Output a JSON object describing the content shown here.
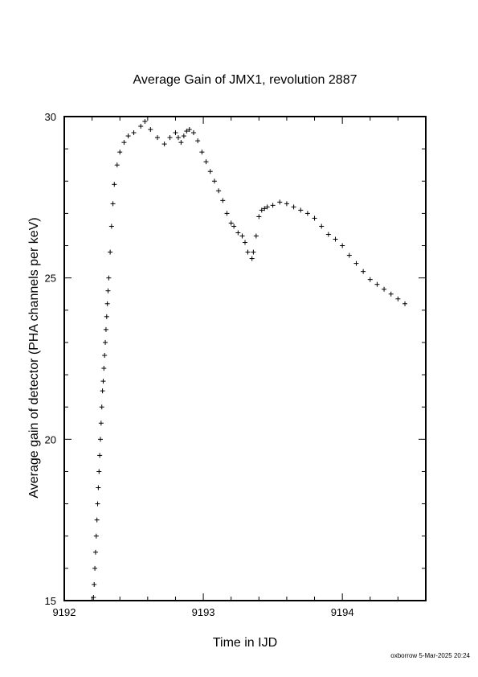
{
  "chart_data": {
    "type": "scatter",
    "title": "Average Gain of JMX1, revolution 2887",
    "xlabel": "Time in IJD",
    "ylabel": "Average gain of detector (PHA channels per keV)",
    "xlim": [
      9192,
      9194.6
    ],
    "ylim": [
      15,
      30
    ],
    "x_ticks": [
      9192,
      9193,
      9194
    ],
    "x_tick_labels": [
      "9192",
      "9193",
      "9194"
    ],
    "y_ticks": [
      15,
      20,
      25,
      30
    ],
    "y_tick_labels": [
      "15",
      "20",
      "25",
      "30"
    ],
    "x_minor_step": 0.2,
    "y_minor_step": 1,
    "marker": "+",
    "grid": false,
    "legend": "none",
    "series": [
      {
        "x": [
          9192.21,
          9192.215,
          9192.22,
          9192.225,
          9192.23,
          9192.235,
          9192.24,
          9192.245,
          9192.25,
          9192.255,
          9192.26,
          9192.265,
          9192.27,
          9192.275,
          9192.28,
          9192.285,
          9192.29,
          9192.295,
          9192.3,
          9192.305,
          9192.31,
          9192.315,
          9192.32,
          9192.33,
          9192.34,
          9192.35,
          9192.36,
          9192.38,
          9192.4,
          9192.43,
          9192.46,
          9192.5,
          9192.55,
          9192.58,
          9192.62,
          9192.67,
          9192.72,
          9192.76,
          9192.8,
          9192.82,
          9192.84,
          9192.86,
          9192.88,
          9192.9,
          9192.93,
          9192.96,
          9192.99,
          9193.02,
          9193.05,
          9193.08,
          9193.11,
          9193.14,
          9193.17,
          9193.2,
          9193.22,
          9193.25,
          9193.28,
          9193.3,
          9193.32,
          9193.35,
          9193.36,
          9193.38,
          9193.4,
          9193.42,
          9193.44,
          9193.46,
          9193.5,
          9193.55,
          9193.6,
          9193.65,
          9193.7,
          9193.75,
          9193.8,
          9193.85,
          9193.9,
          9193.95,
          9194.0,
          9194.05,
          9194.1,
          9194.15,
          9194.2,
          9194.25,
          9194.3,
          9194.35,
          9194.4,
          9194.45
        ],
        "y": [
          15.1,
          15.5,
          16.0,
          16.5,
          17.0,
          17.5,
          18.0,
          18.5,
          19.0,
          19.5,
          20.0,
          20.5,
          21.0,
          21.5,
          21.8,
          22.2,
          22.6,
          23.0,
          23.4,
          23.8,
          24.2,
          24.6,
          25.0,
          25.8,
          26.6,
          27.3,
          27.9,
          28.5,
          28.9,
          29.2,
          29.4,
          29.5,
          29.7,
          29.85,
          29.6,
          29.35,
          29.15,
          29.35,
          29.5,
          29.35,
          29.2,
          29.4,
          29.55,
          29.6,
          29.5,
          29.25,
          28.9,
          28.6,
          28.3,
          28.0,
          27.7,
          27.4,
          27.0,
          26.7,
          26.6,
          26.4,
          26.3,
          26.1,
          25.8,
          25.6,
          25.8,
          26.3,
          26.9,
          27.1,
          27.15,
          27.2,
          27.25,
          27.35,
          27.3,
          27.2,
          27.1,
          27.0,
          26.85,
          26.6,
          26.35,
          26.2,
          26.0,
          25.7,
          25.45,
          25.2,
          24.95,
          24.8,
          24.65,
          24.5,
          24.35,
          24.2
        ]
      }
    ]
  },
  "footer": {
    "stamp": "oxborrow  5-Mar-2025 20:24"
  }
}
